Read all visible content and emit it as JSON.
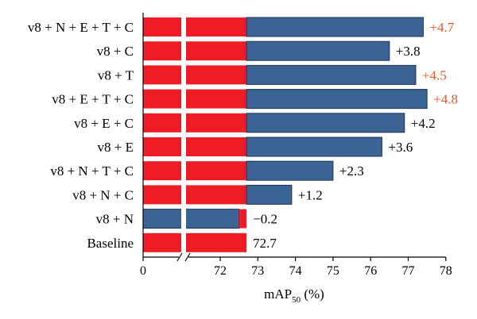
{
  "colors": {
    "baseline_bar": "#ee1c25",
    "variant_bar": "#3b6394",
    "bar_border": "#1f3552",
    "highlight_label": "#e8572a",
    "normal_label": "#000000"
  },
  "chart_data": {
    "type": "bar",
    "orientation": "horizontal",
    "categories": [
      "v8 + N + E + T + C",
      "v8 + C",
      "v8 + T",
      "v8 + E + T + C",
      "v8 + E + C",
      "v8 + E",
      "v8 + N + T + C",
      "v8 + N + C",
      "v8 + N",
      "Baseline"
    ],
    "baseline_value": 72.7,
    "values": [
      77.4,
      76.5,
      77.2,
      77.5,
      76.9,
      76.3,
      75.0,
      73.9,
      72.5,
      72.7
    ],
    "data_labels": [
      "+4.7",
      "+3.8",
      "+4.5",
      "+4.8",
      "+4.2",
      "+3.6",
      "+2.3",
      "+1.2",
      "−0.2",
      "72.7"
    ],
    "highlighted": [
      true,
      false,
      true,
      true,
      false,
      false,
      false,
      false,
      false,
      false
    ],
    "xlabel": "mAP",
    "xlabel_subscript": "50",
    "xlabel_unit": "(%)",
    "x_ticks": [
      "0",
      "72",
      "73",
      "74",
      "75",
      "76",
      "77",
      "78"
    ],
    "xlim": [
      72,
      78
    ],
    "axis_break": true
  }
}
